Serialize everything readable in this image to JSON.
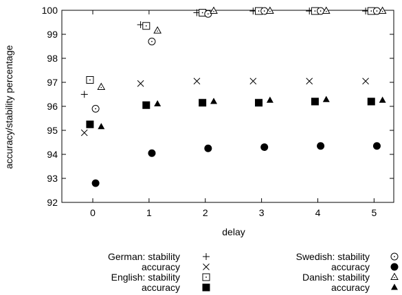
{
  "chart_data": {
    "type": "scatter",
    "xlabel": "delay",
    "ylabel": "accuracy/stability percentage",
    "xlim": [
      -0.55,
      5.35
    ],
    "ylim": [
      92,
      100
    ],
    "xticks": [
      "0",
      "1",
      "2",
      "3",
      "4",
      "5"
    ],
    "yticks": [
      "92",
      "93",
      "94",
      "95",
      "96",
      "97",
      "98",
      "99",
      "100"
    ],
    "grid": false,
    "legend_position": "below",
    "series": [
      {
        "name": "German: stability",
        "marker": "plus",
        "offset": -0.15,
        "x": [
          0,
          1,
          2,
          3,
          4,
          5
        ],
        "y": [
          96.5,
          99.4,
          99.9,
          99.97,
          99.97,
          99.97
        ]
      },
      {
        "name": "accuracy",
        "language": "German",
        "marker": "cross",
        "offset": -0.15,
        "x": [
          0,
          1,
          2,
          3,
          4,
          5
        ],
        "y": [
          94.9,
          96.95,
          97.05,
          97.05,
          97.05,
          97.05
        ]
      },
      {
        "name": "English: stability",
        "marker": "square-dot",
        "offset": -0.05,
        "x": [
          0,
          1,
          2,
          3,
          4,
          5
        ],
        "y": [
          97.1,
          99.35,
          99.9,
          99.97,
          99.97,
          99.97
        ]
      },
      {
        "name": "accuracy",
        "language": "English",
        "marker": "filled-square",
        "offset": -0.05,
        "x": [
          0,
          1,
          2,
          3,
          4,
          5
        ],
        "y": [
          95.25,
          96.05,
          96.15,
          96.15,
          96.2,
          96.2
        ]
      },
      {
        "name": "Swedish: stability",
        "marker": "circle-dot",
        "offset": 0.05,
        "x": [
          0,
          1,
          2,
          3,
          4,
          5
        ],
        "y": [
          95.9,
          98.7,
          99.85,
          99.97,
          99.97,
          99.97
        ]
      },
      {
        "name": "accuracy",
        "language": "Swedish",
        "marker": "filled-circle",
        "offset": 0.05,
        "x": [
          0,
          1,
          2,
          3,
          4,
          5
        ],
        "y": [
          92.8,
          94.05,
          94.25,
          94.3,
          94.35,
          94.35
        ]
      },
      {
        "name": "Danish: stability",
        "marker": "triangle-dot",
        "offset": 0.15,
        "x": [
          0,
          1,
          2,
          3,
          4,
          5
        ],
        "y": [
          96.8,
          99.15,
          99.97,
          99.97,
          99.97,
          99.97
        ]
      },
      {
        "name": "accuracy",
        "language": "Danish",
        "marker": "filled-triangle",
        "offset": 0.15,
        "x": [
          0,
          1,
          2,
          3,
          4,
          5
        ],
        "y": [
          95.15,
          96.1,
          96.2,
          96.25,
          96.28,
          96.25
        ]
      }
    ]
  }
}
